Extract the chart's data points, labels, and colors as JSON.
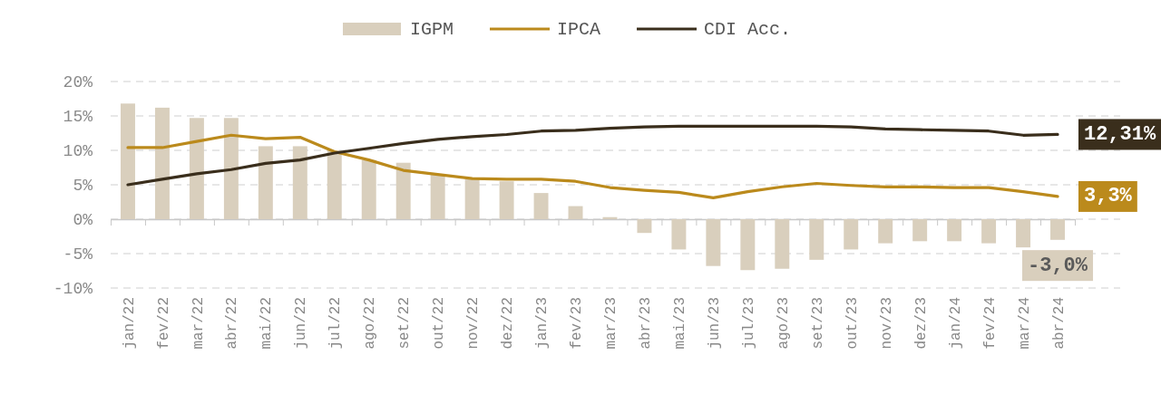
{
  "chart_data": {
    "type": "bar",
    "categories": [
      "jan/22",
      "fev/22",
      "mar/22",
      "abr/22",
      "mai/22",
      "jun/22",
      "jul/22",
      "ago/22",
      "set/22",
      "out/22",
      "nov/22",
      "dez/22",
      "jan/23",
      "fev/23",
      "mar/23",
      "abr/23",
      "mai/23",
      "jun/23",
      "jul/23",
      "ago/23",
      "set/23",
      "out/23",
      "nov/23",
      "dez/23",
      "jan/24",
      "fev/24",
      "mar/24",
      "abr/24"
    ],
    "series": [
      {
        "name": "IGPM",
        "color": "#d9cfbd",
        "values": [
          16.8,
          16.2,
          14.7,
          14.7,
          10.6,
          10.6,
          10.0,
          8.6,
          8.2,
          6.5,
          5.8,
          5.5,
          3.8,
          1.9,
          0.3,
          -2.0,
          -4.4,
          -6.8,
          -7.4,
          -7.2,
          -5.9,
          -4.4,
          -3.5,
          -3.2,
          -3.2,
          -3.5,
          -4.1,
          -3.0
        ],
        "value_labels": [
          null,
          null,
          null,
          null,
          null,
          null,
          null,
          null,
          null,
          null,
          null,
          null,
          null,
          null,
          null,
          null,
          null,
          null,
          null,
          null,
          null,
          null,
          null,
          null,
          null,
          null,
          null,
          "-3,0%"
        ]
      },
      {
        "name": "IPCA",
        "type": "line",
        "color": "#bb8a1c",
        "values": [
          10.4,
          10.4,
          11.3,
          12.2,
          11.7,
          11.9,
          9.8,
          8.6,
          7.1,
          6.5,
          5.9,
          5.8,
          5.8,
          5.5,
          4.6,
          4.2,
          3.9,
          3.1,
          4.0,
          4.7,
          5.2,
          4.9,
          4.7,
          4.7,
          4.6,
          4.6,
          4.0,
          3.3
        ],
        "value_labels": [
          null,
          null,
          null,
          null,
          null,
          null,
          null,
          null,
          null,
          null,
          null,
          null,
          null,
          null,
          null,
          null,
          null,
          null,
          null,
          null,
          null,
          null,
          null,
          null,
          null,
          null,
          null,
          "3,3%"
        ]
      },
      {
        "name": "CDI Acc.",
        "type": "line",
        "color": "#3a2e1c",
        "values": [
          5.0,
          5.8,
          6.6,
          7.2,
          8.1,
          8.6,
          9.6,
          10.3,
          11.0,
          11.6,
          12.0,
          12.3,
          12.8,
          12.9,
          13.2,
          13.4,
          13.5,
          13.5,
          13.5,
          13.5,
          13.5,
          13.4,
          13.1,
          13.0,
          12.9,
          12.8,
          12.2,
          12.31
        ],
        "value_labels": [
          null,
          null,
          null,
          null,
          null,
          null,
          null,
          null,
          null,
          null,
          null,
          null,
          null,
          null,
          null,
          null,
          null,
          null,
          null,
          null,
          null,
          null,
          null,
          null,
          null,
          null,
          null,
          "12,31%"
        ]
      }
    ],
    "ylim": [
      -10,
      20
    ],
    "yticks": [
      {
        "value": -10,
        "label": "-10%"
      },
      {
        "value": -5,
        "label": "-5%"
      },
      {
        "value": 0,
        "label": "0%"
      },
      {
        "value": 5,
        "label": "5%"
      },
      {
        "value": 10,
        "label": "10%"
      },
      {
        "value": 15,
        "label": "15%"
      },
      {
        "value": 20,
        "label": "20%"
      }
    ],
    "grid": "y",
    "legend": "top"
  }
}
